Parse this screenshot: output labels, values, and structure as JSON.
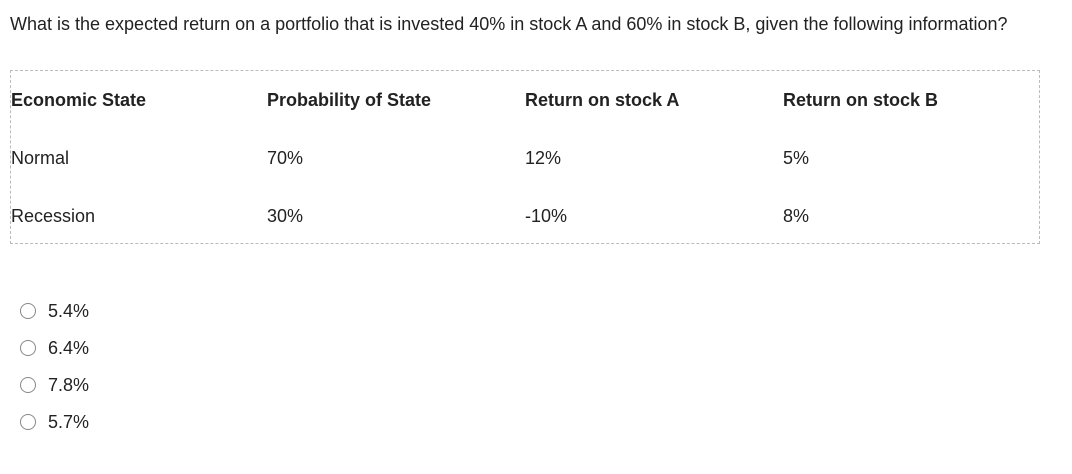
{
  "question": "What is the expected return on a portfolio that is invested 40% in stock A and 60% in stock B, given the following information?",
  "table": {
    "header": [
      "Economic State",
      "Probability of State",
      "Return on stock A",
      "Return on stock B"
    ],
    "rows": [
      [
        "Normal",
        "70%",
        "12%",
        "5%"
      ],
      [
        "Recession",
        "30%",
        "-10%",
        "8%"
      ]
    ]
  },
  "options": [
    "5.4%",
    "6.4%",
    "7.8%",
    "5.7%"
  ]
}
